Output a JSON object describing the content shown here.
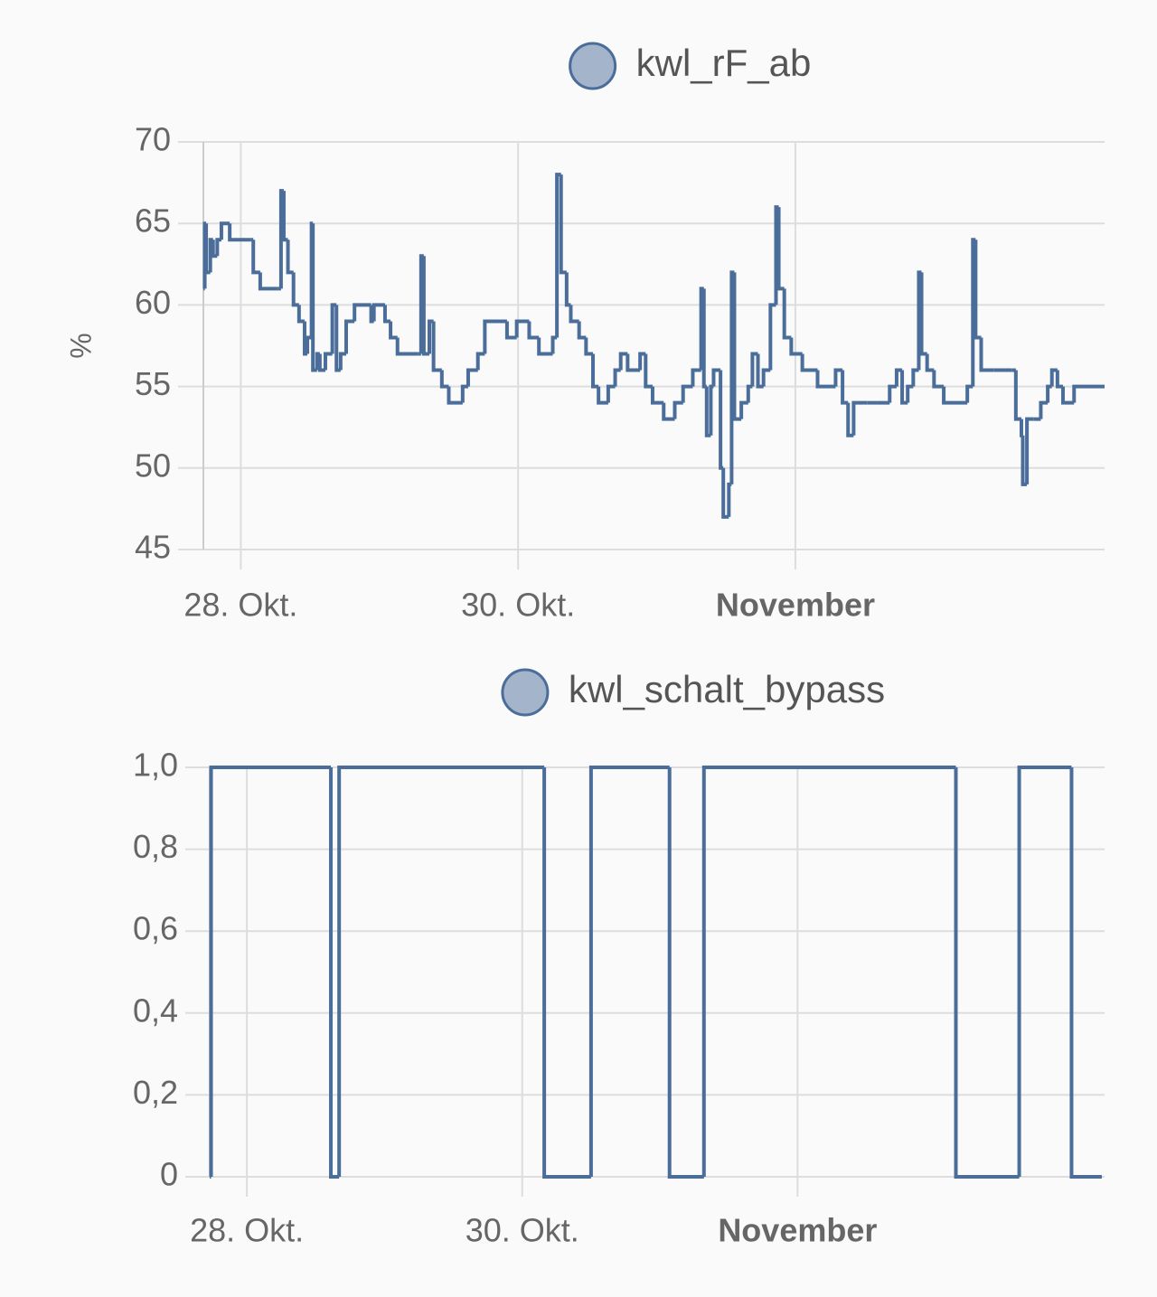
{
  "chart_data": [
    {
      "type": "line",
      "step": true,
      "series": [
        {
          "name": "kwl_rF_ab",
          "color": "#4b6d99",
          "x": [
            27.73,
            27.74,
            27.75,
            27.78,
            27.8,
            27.83,
            27.86,
            27.92,
            28.07,
            28.09,
            28.14,
            28.27,
            28.29,
            28.31,
            28.34,
            28.38,
            28.42,
            28.46,
            28.48,
            28.51,
            28.52,
            28.55,
            28.57,
            28.61,
            28.66,
            28.69,
            28.72,
            28.76,
            28.82,
            28.94,
            28.96,
            29.04,
            29.08,
            29.13,
            29.28,
            29.3,
            29.32,
            29.36,
            29.39,
            29.45,
            29.5,
            29.6,
            29.64,
            29.71,
            29.76,
            29.92,
            29.99,
            30.08,
            30.15,
            30.25,
            30.28,
            30.31,
            30.35,
            30.38,
            30.44,
            30.49,
            30.54,
            30.58,
            30.65,
            30.7,
            30.74,
            30.79,
            30.88,
            30.92,
            30.97,
            31.05,
            31.13,
            31.19,
            31.26,
            31.32,
            31.34,
            31.36,
            31.39,
            31.41,
            31.46,
            31.48,
            31.52,
            31.54,
            31.56,
            31.61,
            31.66,
            31.69,
            31.73,
            31.77,
            31.82,
            31.86,
            31.88,
            31.92,
            31.97,
            32.05,
            32.16,
            32.29,
            32.34,
            32.38,
            32.42,
            32.52,
            32.59,
            32.68,
            32.73,
            32.77,
            32.81,
            32.85,
            32.89,
            32.91,
            32.95,
            33.0,
            33.07,
            33.24,
            33.28,
            33.3,
            33.34,
            33.43,
            33.56,
            33.59,
            33.63,
            33.64,
            33.67,
            33.72,
            33.77,
            33.82,
            33.85,
            33.89,
            33.93,
            34.01,
            34.23
          ],
          "values": [
            61,
            65,
            62,
            64,
            63,
            64,
            65,
            64,
            64,
            62,
            61,
            61,
            67,
            64,
            62,
            60,
            59,
            57,
            58,
            65,
            56,
            57,
            56,
            57,
            60,
            56,
            57,
            59,
            60,
            59,
            60,
            59,
            58,
            57,
            57,
            63,
            57,
            59,
            56,
            55,
            54,
            55,
            56,
            57,
            59,
            58,
            59,
            58,
            57,
            58,
            68,
            62,
            60,
            59,
            58,
            57,
            55,
            54,
            55,
            56,
            57,
            56,
            57,
            55,
            54,
            53,
            54,
            55,
            56,
            61,
            55,
            52,
            55,
            56,
            50,
            47,
            49,
            62,
            53,
            54,
            55,
            57,
            55,
            56,
            60,
            66,
            61,
            58,
            57,
            56,
            55,
            56,
            54,
            52,
            54,
            54,
            54,
            55,
            56,
            54,
            55,
            56,
            62,
            57,
            56,
            55,
            54,
            55,
            64,
            58,
            56,
            56,
            56,
            53,
            52,
            49,
            53,
            53,
            54,
            55,
            56,
            55,
            54,
            55,
            55
          ]
        }
      ],
      "y_label": "%",
      "xlim": [
        27.73,
        34.23
      ],
      "xticks": [
        {
          "value": 28,
          "label": "28. Okt."
        },
        {
          "value": 30,
          "label": "30. Okt."
        },
        {
          "value": 32,
          "label": "November"
        }
      ],
      "ylim": [
        45,
        70
      ],
      "yticks": [
        45,
        50,
        55,
        60,
        65,
        70
      ],
      "grid": true
    },
    {
      "type": "line",
      "step": true,
      "series": [
        {
          "name": "kwl_schalt_bypass",
          "color": "#4b6d99",
          "x": [
            27.73,
            27.74,
            28.61,
            28.67,
            30.16,
            30.5,
            31.07,
            31.32,
            33.15,
            33.61,
            33.99,
            34.21
          ],
          "values": [
            0,
            1,
            0,
            1,
            0,
            1,
            0,
            1,
            0,
            1,
            0,
            0
          ]
        }
      ],
      "xlim": [
        27.73,
        34.23
      ],
      "xticks": [
        {
          "value": 28,
          "label": "28. Okt."
        },
        {
          "value": 30,
          "label": "30. Okt."
        },
        {
          "value": 32,
          "label": "November"
        }
      ],
      "ylim": [
        0,
        1
      ],
      "yticks": [
        0,
        {
          "value": 0.2,
          "label": "0,2"
        },
        {
          "value": 0.4,
          "label": "0,4"
        },
        {
          "value": 0.6,
          "label": "0,6"
        },
        {
          "value": 0.8,
          "label": "0,8"
        },
        {
          "value": 1,
          "label": "1,0"
        }
      ],
      "grid": true
    }
  ]
}
